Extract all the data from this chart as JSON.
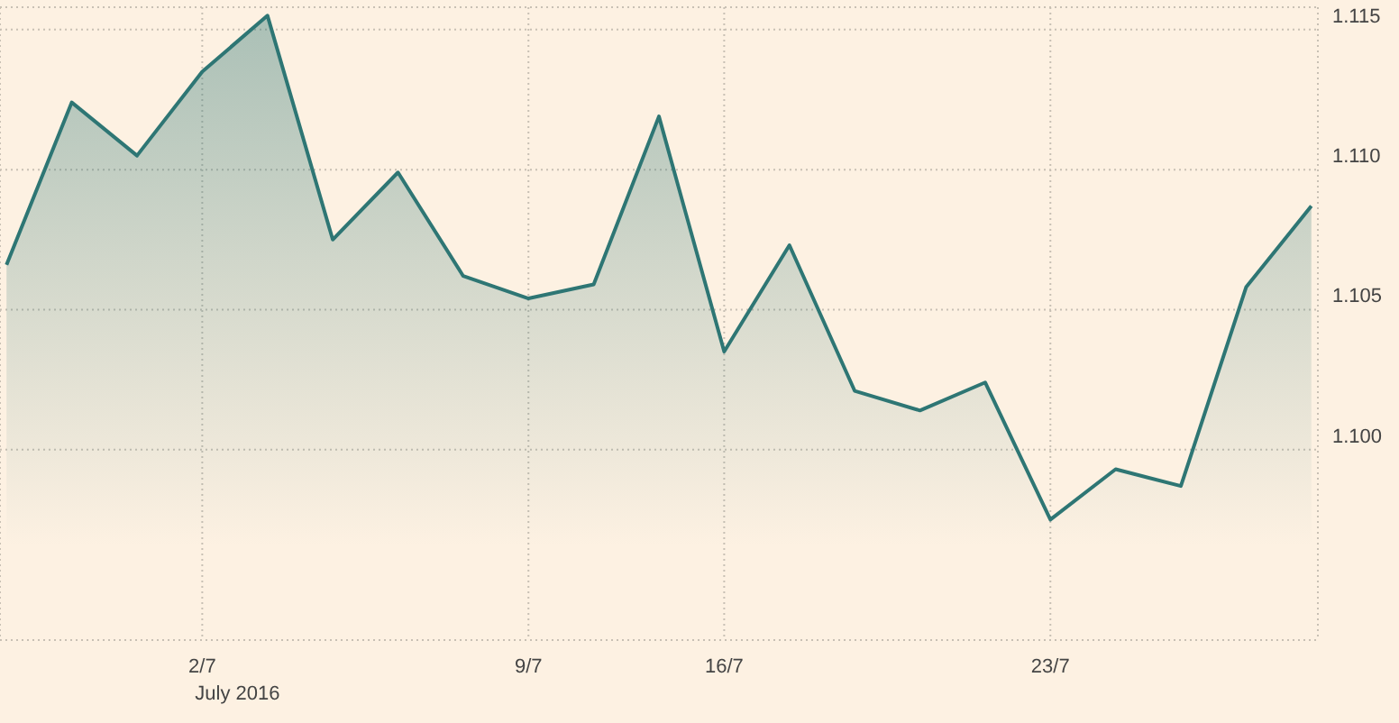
{
  "chart_data": {
    "type": "area",
    "xlabel": "July 2016",
    "categories": [
      null,
      null,
      null,
      "2/7",
      null,
      null,
      null,
      null,
      "9/7",
      null,
      null,
      "16/7",
      null,
      null,
      null,
      null,
      "23/7",
      null,
      null,
      null,
      null
    ],
    "series": [
      {
        "color": "#2e7674",
        "values": [
          1.1066,
          1.1124,
          1.1105,
          1.1135,
          1.1155,
          1.1075,
          1.1099,
          1.1062,
          1.1054,
          1.1059,
          1.1119,
          1.1035,
          1.1073,
          1.1021,
          1.1014,
          1.1024,
          1.0975,
          1.0993,
          1.0987,
          1.1058,
          1.1087
        ]
      }
    ],
    "ylim": [
      1.0932,
      1.1158
    ],
    "yticks": [
      {
        "value": 1.1,
        "label": "1.100"
      },
      {
        "value": 1.105,
        "label": "1.105"
      },
      {
        "value": 1.11,
        "label": "1.110"
      },
      {
        "value": 1.115,
        "label": "1.115"
      }
    ],
    "grid": true
  }
}
